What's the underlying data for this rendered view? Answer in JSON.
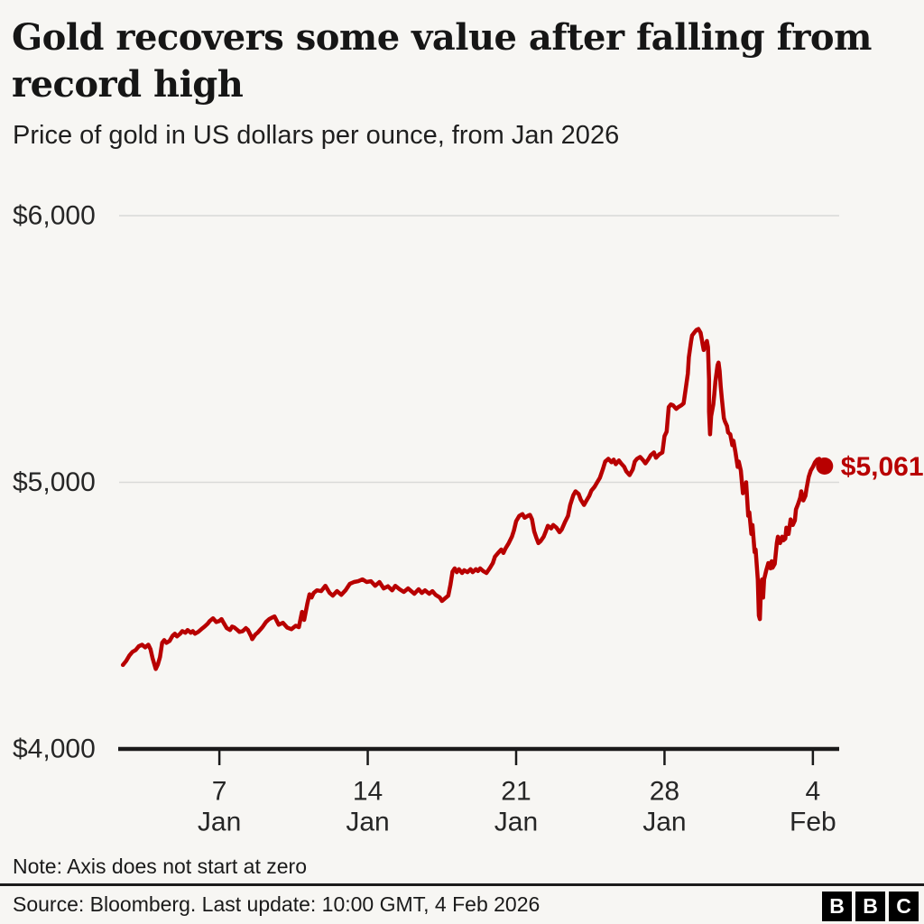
{
  "header": {
    "title": "Gold recovers some value after falling from record high",
    "subtitle": "Price of gold in US dollars per ounce, from Jan 2026"
  },
  "footer": {
    "note": "Note: Axis does not start at zero",
    "source": "Source: Bloomberg. Last update: 10:00 GMT, 4 Feb 2026",
    "logo_letters": [
      "B",
      "B",
      "C"
    ]
  },
  "colors": {
    "background": "#f7f6f3",
    "line": "#b80000",
    "grid": "#d9d9d8",
    "axis": "#1a1a1a",
    "text": "#262626"
  },
  "chart_data": {
    "type": "line",
    "title": "Gold recovers some value after falling from record high",
    "subtitle": "Price of gold in US dollars per ounce, from Jan 2026",
    "xlabel": "",
    "ylabel": "US dollars per ounce",
    "grid": "horizontal",
    "legend": "none",
    "x_axis": {
      "unit": "day (1 = 1 Jan 2026)",
      "domain": [
        2.27,
        36.24
      ],
      "ticks": [
        {
          "day": 7,
          "label_line1": "7",
          "label_line2": "Jan"
        },
        {
          "day": 14,
          "label_line1": "14",
          "label_line2": "Jan"
        },
        {
          "day": 21,
          "label_line1": "21",
          "label_line2": "Jan"
        },
        {
          "day": 28,
          "label_line1": "28",
          "label_line2": "Jan"
        },
        {
          "day": 35,
          "label_line1": "4",
          "label_line2": "Feb"
        }
      ]
    },
    "y_axis": {
      "unit": "USD",
      "domain": [
        4000,
        6000
      ],
      "ticks": [
        {
          "value": 4000,
          "label": "$4,000",
          "style": "baseline"
        },
        {
          "value": 5000,
          "label": "$5,000",
          "style": "grid"
        },
        {
          "value": 6000,
          "label": "$6,000",
          "style": "grid"
        }
      ]
    },
    "end_annotation": {
      "label": "$5,061",
      "day": 35.55,
      "price": 5061
    },
    "series": [
      {
        "name": "Gold price",
        "color": "#b80000",
        "points": [
          [
            2.45,
            4315
          ],
          [
            2.6,
            4330
          ],
          [
            2.75,
            4350
          ],
          [
            2.9,
            4364
          ],
          [
            3.05,
            4371
          ],
          [
            3.2,
            4385
          ],
          [
            3.35,
            4391
          ],
          [
            3.5,
            4381
          ],
          [
            3.65,
            4391
          ],
          [
            3.75,
            4374
          ],
          [
            3.85,
            4340
          ],
          [
            4.0,
            4300
          ],
          [
            4.1,
            4317
          ],
          [
            4.2,
            4344
          ],
          [
            4.3,
            4398
          ],
          [
            4.4,
            4408
          ],
          [
            4.5,
            4398
          ],
          [
            4.65,
            4405
          ],
          [
            4.8,
            4425
          ],
          [
            4.9,
            4432
          ],
          [
            5.0,
            4422
          ],
          [
            5.15,
            4432
          ],
          [
            5.25,
            4442
          ],
          [
            5.4,
            4436
          ],
          [
            5.5,
            4446
          ],
          [
            5.65,
            4436
          ],
          [
            5.75,
            4442
          ],
          [
            5.85,
            4432
          ],
          [
            6.0,
            4439
          ],
          [
            6.15,
            4449
          ],
          [
            6.3,
            4459
          ],
          [
            6.45,
            4470
          ],
          [
            6.55,
            4480
          ],
          [
            6.7,
            4490
          ],
          [
            6.85,
            4476
          ],
          [
            7.0,
            4480
          ],
          [
            7.1,
            4487
          ],
          [
            7.2,
            4473
          ],
          [
            7.35,
            4453
          ],
          [
            7.5,
            4446
          ],
          [
            7.6,
            4459
          ],
          [
            7.7,
            4456
          ],
          [
            7.85,
            4446
          ],
          [
            7.95,
            4439
          ],
          [
            8.1,
            4442
          ],
          [
            8.25,
            4453
          ],
          [
            8.35,
            4446
          ],
          [
            8.5,
            4422
          ],
          [
            8.55,
            4412
          ],
          [
            8.7,
            4429
          ],
          [
            8.8,
            4436
          ],
          [
            8.95,
            4449
          ],
          [
            9.05,
            4459
          ],
          [
            9.2,
            4476
          ],
          [
            9.35,
            4487
          ],
          [
            9.5,
            4493
          ],
          [
            9.6,
            4497
          ],
          [
            9.8,
            4466
          ],
          [
            10.0,
            4473
          ],
          [
            10.2,
            4455
          ],
          [
            10.4,
            4449
          ],
          [
            10.6,
            4462
          ],
          [
            10.75,
            4457
          ],
          [
            10.9,
            4514
          ],
          [
            11.0,
            4484
          ],
          [
            11.15,
            4545
          ],
          [
            11.25,
            4580
          ],
          [
            11.35,
            4568
          ],
          [
            11.45,
            4585
          ],
          [
            11.6,
            4595
          ],
          [
            11.8,
            4592
          ],
          [
            12.0,
            4612
          ],
          [
            12.2,
            4585
          ],
          [
            12.35,
            4575
          ],
          [
            12.55,
            4592
          ],
          [
            12.75,
            4578
          ],
          [
            12.95,
            4595
          ],
          [
            13.15,
            4619
          ],
          [
            13.35,
            4626
          ],
          [
            13.55,
            4629
          ],
          [
            13.75,
            4636
          ],
          [
            13.95,
            4626
          ],
          [
            14.15,
            4629
          ],
          [
            14.35,
            4612
          ],
          [
            14.55,
            4626
          ],
          [
            14.75,
            4602
          ],
          [
            14.95,
            4610
          ],
          [
            15.15,
            4595
          ],
          [
            15.3,
            4612
          ],
          [
            15.5,
            4599
          ],
          [
            15.7,
            4589
          ],
          [
            15.9,
            4602
          ],
          [
            16.05,
            4592
          ],
          [
            16.2,
            4582
          ],
          [
            16.4,
            4599
          ],
          [
            16.55,
            4585
          ],
          [
            16.7,
            4595
          ],
          [
            16.9,
            4582
          ],
          [
            17.05,
            4592
          ],
          [
            17.2,
            4578
          ],
          [
            17.4,
            4568
          ],
          [
            17.5,
            4555
          ],
          [
            17.65,
            4565
          ],
          [
            17.8,
            4575
          ],
          [
            17.9,
            4616
          ],
          [
            18.0,
            4665
          ],
          [
            18.1,
            4677
          ],
          [
            18.2,
            4663
          ],
          [
            18.3,
            4674
          ],
          [
            18.45,
            4660
          ],
          [
            18.55,
            4670
          ],
          [
            18.7,
            4663
          ],
          [
            18.85,
            4674
          ],
          [
            18.95,
            4663
          ],
          [
            19.1,
            4674
          ],
          [
            19.2,
            4667
          ],
          [
            19.3,
            4677
          ],
          [
            19.45,
            4667
          ],
          [
            19.6,
            4660
          ],
          [
            19.75,
            4677
          ],
          [
            19.9,
            4697
          ],
          [
            20.0,
            4721
          ],
          [
            20.15,
            4735
          ],
          [
            20.3,
            4748
          ],
          [
            20.4,
            4735
          ],
          [
            20.5,
            4752
          ],
          [
            20.65,
            4772
          ],
          [
            20.8,
            4796
          ],
          [
            20.9,
            4820
          ],
          [
            21.0,
            4854
          ],
          [
            21.15,
            4874
          ],
          [
            21.3,
            4881
          ],
          [
            21.4,
            4867
          ],
          [
            21.55,
            4874
          ],
          [
            21.65,
            4878
          ],
          [
            21.75,
            4861
          ],
          [
            21.85,
            4816
          ],
          [
            21.95,
            4793
          ],
          [
            22.05,
            4772
          ],
          [
            22.15,
            4779
          ],
          [
            22.3,
            4796
          ],
          [
            22.4,
            4816
          ],
          [
            22.5,
            4837
          ],
          [
            22.65,
            4827
          ],
          [
            22.75,
            4840
          ],
          [
            22.9,
            4830
          ],
          [
            23.05,
            4813
          ],
          [
            23.15,
            4823
          ],
          [
            23.3,
            4850
          ],
          [
            23.45,
            4874
          ],
          [
            23.55,
            4915
          ],
          [
            23.7,
            4952
          ],
          [
            23.8,
            4966
          ],
          [
            23.95,
            4956
          ],
          [
            24.05,
            4935
          ],
          [
            24.2,
            4915
          ],
          [
            24.3,
            4929
          ],
          [
            24.45,
            4949
          ],
          [
            24.55,
            4969
          ],
          [
            24.7,
            4983
          ],
          [
            24.8,
            4997
          ],
          [
            24.95,
            5017
          ],
          [
            25.1,
            5051
          ],
          [
            25.2,
            5078
          ],
          [
            25.35,
            5088
          ],
          [
            25.5,
            5075
          ],
          [
            25.6,
            5085
          ],
          [
            25.7,
            5068
          ],
          [
            25.85,
            5082
          ],
          [
            25.95,
            5071
          ],
          [
            26.1,
            5058
          ],
          [
            26.2,
            5041
          ],
          [
            26.35,
            5027
          ],
          [
            26.5,
            5048
          ],
          [
            26.6,
            5078
          ],
          [
            26.7,
            5088
          ],
          [
            26.85,
            5095
          ],
          [
            27.0,
            5082
          ],
          [
            27.1,
            5071
          ],
          [
            27.25,
            5088
          ],
          [
            27.35,
            5102
          ],
          [
            27.5,
            5112
          ],
          [
            27.6,
            5092
          ],
          [
            27.75,
            5105
          ],
          [
            27.9,
            5112
          ],
          [
            28.0,
            5173
          ],
          [
            28.1,
            5190
          ],
          [
            28.2,
            5282
          ],
          [
            28.3,
            5292
          ],
          [
            28.4,
            5289
          ],
          [
            28.55,
            5275
          ],
          [
            28.65,
            5282
          ],
          [
            28.8,
            5289
          ],
          [
            28.9,
            5296
          ],
          [
            29.0,
            5350
          ],
          [
            29.1,
            5408
          ],
          [
            29.15,
            5469
          ],
          [
            29.25,
            5527
          ],
          [
            29.3,
            5551
          ],
          [
            29.4,
            5561
          ],
          [
            29.5,
            5571
          ],
          [
            29.6,
            5575
          ],
          [
            29.7,
            5561
          ],
          [
            29.75,
            5541
          ],
          [
            29.8,
            5517
          ],
          [
            29.85,
            5496
          ],
          [
            29.9,
            5510
          ],
          [
            30.0,
            5530
          ],
          [
            30.05,
            5507
          ],
          [
            30.1,
            5384
          ],
          [
            30.1,
            5265
          ],
          [
            30.15,
            5180
          ],
          [
            30.2,
            5248
          ],
          [
            30.3,
            5292
          ],
          [
            30.35,
            5330
          ],
          [
            30.4,
            5377
          ],
          [
            30.5,
            5439
          ],
          [
            30.55,
            5449
          ],
          [
            30.6,
            5418
          ],
          [
            30.65,
            5360
          ],
          [
            30.7,
            5316
          ],
          [
            30.8,
            5241
          ],
          [
            30.85,
            5228
          ],
          [
            30.95,
            5211
          ],
          [
            31.0,
            5187
          ],
          [
            31.1,
            5180
          ],
          [
            31.2,
            5139
          ],
          [
            31.25,
            5156
          ],
          [
            31.35,
            5112
          ],
          [
            31.45,
            5058
          ],
          [
            31.5,
            5078
          ],
          [
            31.6,
            5044
          ],
          [
            31.7,
            4959
          ],
          [
            31.8,
            4976
          ],
          [
            31.85,
            5000
          ],
          [
            31.95,
            4874
          ],
          [
            32.0,
            4888
          ],
          [
            32.1,
            4806
          ],
          [
            32.15,
            4840
          ],
          [
            32.25,
            4738
          ],
          [
            32.3,
            4748
          ],
          [
            32.4,
            4636
          ],
          [
            32.45,
            4500
          ],
          [
            32.5,
            4487
          ],
          [
            32.55,
            4602
          ],
          [
            32.6,
            4636
          ],
          [
            32.65,
            4568
          ],
          [
            32.7,
            4636
          ],
          [
            32.8,
            4670
          ],
          [
            32.9,
            4697
          ],
          [
            33.0,
            4677
          ],
          [
            33.05,
            4704
          ],
          [
            33.1,
            4680
          ],
          [
            33.2,
            4694
          ],
          [
            33.3,
            4772
          ],
          [
            33.35,
            4796
          ],
          [
            33.45,
            4772
          ],
          [
            33.55,
            4796
          ],
          [
            33.6,
            4782
          ],
          [
            33.7,
            4789
          ],
          [
            33.75,
            4830
          ],
          [
            33.85,
            4806
          ],
          [
            33.95,
            4861
          ],
          [
            34.05,
            4840
          ],
          [
            34.15,
            4857
          ],
          [
            34.2,
            4898
          ],
          [
            34.3,
            4918
          ],
          [
            34.4,
            4942
          ],
          [
            34.45,
            4966
          ],
          [
            34.55,
            4932
          ],
          [
            34.65,
            4949
          ],
          [
            34.7,
            4976
          ],
          [
            34.8,
            5020
          ],
          [
            34.9,
            5044
          ],
          [
            35.0,
            5058
          ],
          [
            35.1,
            5075
          ],
          [
            35.2,
            5085
          ],
          [
            35.3,
            5088
          ],
          [
            35.35,
            5082
          ],
          [
            35.45,
            5071
          ],
          [
            35.55,
            5061
          ]
        ]
      }
    ]
  }
}
